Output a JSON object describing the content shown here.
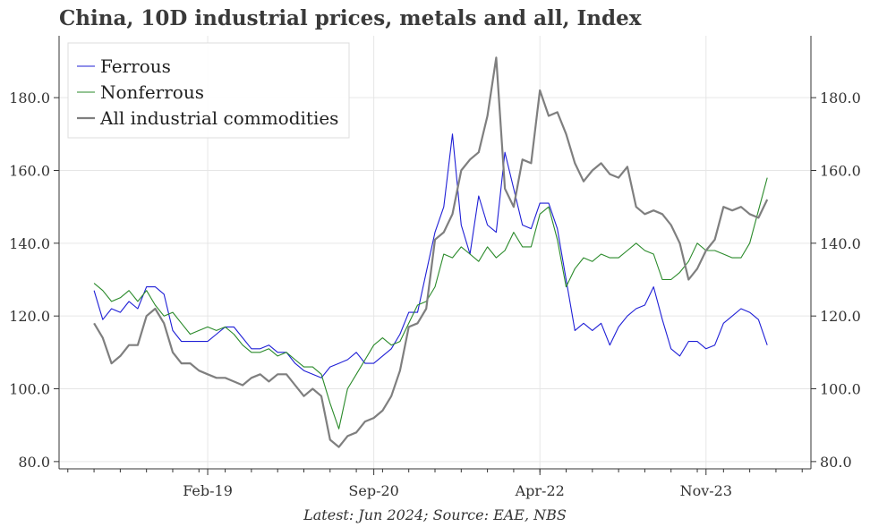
{
  "title": "China, 10D industrial prices, metals and all, Index",
  "source": "Latest: Jun 2024; Source: EAE, NBS",
  "chart_data": {
    "type": "line",
    "x_ticks": [
      "2019-02",
      "2020-09",
      "2022-04",
      "2023-11"
    ],
    "x_tick_labels": [
      "Feb-19",
      "Sep-20",
      "Apr-22",
      "Nov-23"
    ],
    "xlim": [
      "2017-09",
      "2024-11"
    ],
    "ylim": [
      78,
      197
    ],
    "y_ticks": [
      80,
      100,
      120,
      140,
      160,
      180
    ],
    "y_tick_labels": [
      "80.0",
      "100.0",
      "120.0",
      "140.0",
      "160.0",
      "180.0"
    ],
    "grid": true,
    "legend_position": "top-left",
    "series": [
      {
        "name": "Ferrous",
        "color": "#1f1fd6",
        "x": [
          "2018-01",
          "2018-02",
          "2018-03",
          "2018-04",
          "2018-05",
          "2018-06",
          "2018-07",
          "2018-08",
          "2018-09",
          "2018-10",
          "2018-11",
          "2018-12",
          "2019-01",
          "2019-02",
          "2019-03",
          "2019-04",
          "2019-05",
          "2019-06",
          "2019-07",
          "2019-08",
          "2019-09",
          "2019-10",
          "2019-11",
          "2019-12",
          "2020-01",
          "2020-02",
          "2020-03",
          "2020-04",
          "2020-05",
          "2020-06",
          "2020-07",
          "2020-08",
          "2020-09",
          "2020-10",
          "2020-11",
          "2020-12",
          "2021-01",
          "2021-02",
          "2021-03",
          "2021-04",
          "2021-05",
          "2021-06",
          "2021-07",
          "2021-08",
          "2021-09",
          "2021-10",
          "2021-11",
          "2021-12",
          "2022-01",
          "2022-02",
          "2022-03",
          "2022-04",
          "2022-05",
          "2022-06",
          "2022-07",
          "2022-08",
          "2022-09",
          "2022-10",
          "2022-11",
          "2022-12",
          "2023-01",
          "2023-02",
          "2023-03",
          "2023-04",
          "2023-05",
          "2023-06",
          "2023-07",
          "2023-08",
          "2023-09",
          "2023-10",
          "2023-11",
          "2023-12",
          "2024-01",
          "2024-02",
          "2024-03",
          "2024-04",
          "2024-05",
          "2024-06"
        ],
        "values": [
          127,
          119,
          122,
          121,
          124,
          122,
          128,
          128,
          126,
          116,
          113,
          113,
          113,
          113,
          115,
          117,
          117,
          114,
          111,
          111,
          112,
          110,
          110,
          107,
          105,
          104,
          103,
          106,
          107,
          108,
          110,
          107,
          107,
          109,
          111,
          115,
          121,
          121,
          132,
          143,
          150,
          170,
          145,
          137,
          153,
          145,
          143,
          165,
          155,
          145,
          144,
          151,
          151,
          144,
          130,
          116,
          118,
          116,
          118,
          112,
          117,
          120,
          122,
          123,
          128,
          119,
          111,
          109,
          113,
          113,
          111,
          112,
          118,
          120,
          122,
          121,
          119,
          112
        ]
      },
      {
        "name": "Nonferrous",
        "color": "#2a8a2a",
        "x": [
          "2018-01",
          "2018-02",
          "2018-03",
          "2018-04",
          "2018-05",
          "2018-06",
          "2018-07",
          "2018-08",
          "2018-09",
          "2018-10",
          "2018-11",
          "2018-12",
          "2019-01",
          "2019-02",
          "2019-03",
          "2019-04",
          "2019-05",
          "2019-06",
          "2019-07",
          "2019-08",
          "2019-09",
          "2019-10",
          "2019-11",
          "2019-12",
          "2020-01",
          "2020-02",
          "2020-03",
          "2020-04",
          "2020-05",
          "2020-06",
          "2020-07",
          "2020-08",
          "2020-09",
          "2020-10",
          "2020-11",
          "2020-12",
          "2021-01",
          "2021-02",
          "2021-03",
          "2021-04",
          "2021-05",
          "2021-06",
          "2021-07",
          "2021-08",
          "2021-09",
          "2021-10",
          "2021-11",
          "2021-12",
          "2022-01",
          "2022-02",
          "2022-03",
          "2022-04",
          "2022-05",
          "2022-06",
          "2022-07",
          "2022-08",
          "2022-09",
          "2022-10",
          "2022-11",
          "2022-12",
          "2023-01",
          "2023-02",
          "2023-03",
          "2023-04",
          "2023-05",
          "2023-06",
          "2023-07",
          "2023-08",
          "2023-09",
          "2023-10",
          "2023-11",
          "2023-12",
          "2024-01",
          "2024-02",
          "2024-03",
          "2024-04",
          "2024-05",
          "2024-06"
        ],
        "values": [
          129,
          127,
          124,
          125,
          127,
          124,
          127,
          123,
          120,
          121,
          118,
          115,
          116,
          117,
          116,
          117,
          115,
          112,
          110,
          110,
          111,
          109,
          110,
          108,
          106,
          106,
          104,
          96,
          89,
          100,
          104,
          108,
          112,
          114,
          112,
          113,
          118,
          123,
          124,
          128,
          137,
          136,
          139,
          137,
          135,
          139,
          136,
          138,
          143,
          139,
          139,
          148,
          150,
          141,
          128,
          133,
          136,
          135,
          137,
          136,
          136,
          138,
          140,
          138,
          137,
          130,
          130,
          132,
          135,
          140,
          138,
          138,
          137,
          136,
          136,
          140,
          149,
          158
        ]
      },
      {
        "name": "All industrial commodities",
        "color": "#7f7f7f",
        "x": [
          "2018-01",
          "2018-02",
          "2018-03",
          "2018-04",
          "2018-05",
          "2018-06",
          "2018-07",
          "2018-08",
          "2018-09",
          "2018-10",
          "2018-11",
          "2018-12",
          "2019-01",
          "2019-02",
          "2019-03",
          "2019-04",
          "2019-05",
          "2019-06",
          "2019-07",
          "2019-08",
          "2019-09",
          "2019-10",
          "2019-11",
          "2019-12",
          "2020-01",
          "2020-02",
          "2020-03",
          "2020-04",
          "2020-05",
          "2020-06",
          "2020-07",
          "2020-08",
          "2020-09",
          "2020-10",
          "2020-11",
          "2020-12",
          "2021-01",
          "2021-02",
          "2021-03",
          "2021-04",
          "2021-05",
          "2021-06",
          "2021-07",
          "2021-08",
          "2021-09",
          "2021-10",
          "2021-11",
          "2021-12",
          "2022-01",
          "2022-02",
          "2022-03",
          "2022-04",
          "2022-05",
          "2022-06",
          "2022-07",
          "2022-08",
          "2022-09",
          "2022-10",
          "2022-11",
          "2022-12",
          "2023-01",
          "2023-02",
          "2023-03",
          "2023-04",
          "2023-05",
          "2023-06",
          "2023-07",
          "2023-08",
          "2023-09",
          "2023-10",
          "2023-11",
          "2023-12",
          "2024-01",
          "2024-02",
          "2024-03",
          "2024-04",
          "2024-05",
          "2024-06"
        ],
        "values": [
          118,
          114,
          107,
          109,
          112,
          112,
          120,
          122,
          118,
          110,
          107,
          107,
          105,
          104,
          103,
          103,
          102,
          101,
          103,
          104,
          102,
          104,
          104,
          101,
          98,
          100,
          98,
          86,
          84,
          87,
          88,
          91,
          92,
          94,
          98,
          105,
          117,
          118,
          122,
          141,
          143,
          148,
          160,
          163,
          165,
          175,
          191,
          155,
          150,
          163,
          162,
          182,
          175,
          176,
          170,
          162,
          157,
          160,
          162,
          159,
          158,
          161,
          150,
          148,
          149,
          148,
          145,
          140,
          130,
          133,
          138,
          141,
          150,
          149,
          150,
          148,
          147,
          152
        ]
      }
    ]
  }
}
